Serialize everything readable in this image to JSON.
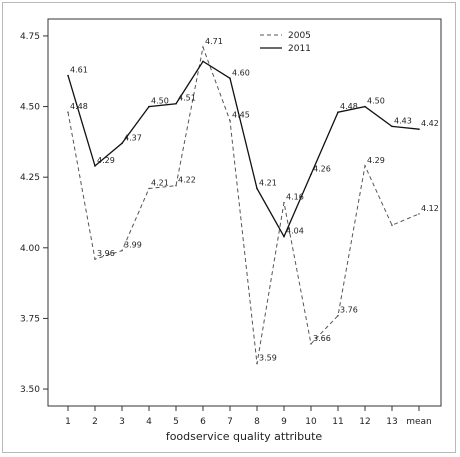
{
  "chart_data": {
    "type": "line",
    "xlabel": "foodservice quality attribute",
    "ylabel": "",
    "ylim": [
      3.44,
      4.81
    ],
    "yticks": [
      "3.50",
      "3.75",
      "4.00",
      "4.25",
      "4.50",
      "4.75"
    ],
    "categories": [
      "1",
      "2",
      "3",
      "4",
      "5",
      "6",
      "7",
      "8",
      "9",
      "10",
      "11",
      "12",
      "13",
      "mean"
    ],
    "grid": false,
    "legend_position": "top-right",
    "series": [
      {
        "name": "2005",
        "style": "dashed",
        "color": "#555555",
        "values": [
          4.48,
          3.96,
          3.99,
          4.21,
          4.22,
          4.71,
          4.45,
          3.59,
          4.16,
          3.66,
          3.76,
          4.29,
          4.08,
          4.12
        ],
        "labels": [
          "4.48",
          "3.96",
          "3.99",
          "4.21",
          "4.22",
          "4.71",
          "4.45",
          "3.59",
          "4.16",
          "3.66",
          "3.76",
          "4.29",
          "",
          "4.12"
        ]
      },
      {
        "name": "2011",
        "style": "solid",
        "color": "#111111",
        "values": [
          4.61,
          4.29,
          4.37,
          4.5,
          4.51,
          4.66,
          4.6,
          4.21,
          4.04,
          4.26,
          4.48,
          4.5,
          4.43,
          4.42
        ],
        "labels": [
          "4.61",
          "4.29",
          "4.37",
          "4.50",
          "4.51",
          "",
          "4.60",
          "4.21",
          "4.04",
          "4.26",
          "4.48",
          "4.50",
          "4.43",
          "4.42"
        ]
      }
    ]
  }
}
